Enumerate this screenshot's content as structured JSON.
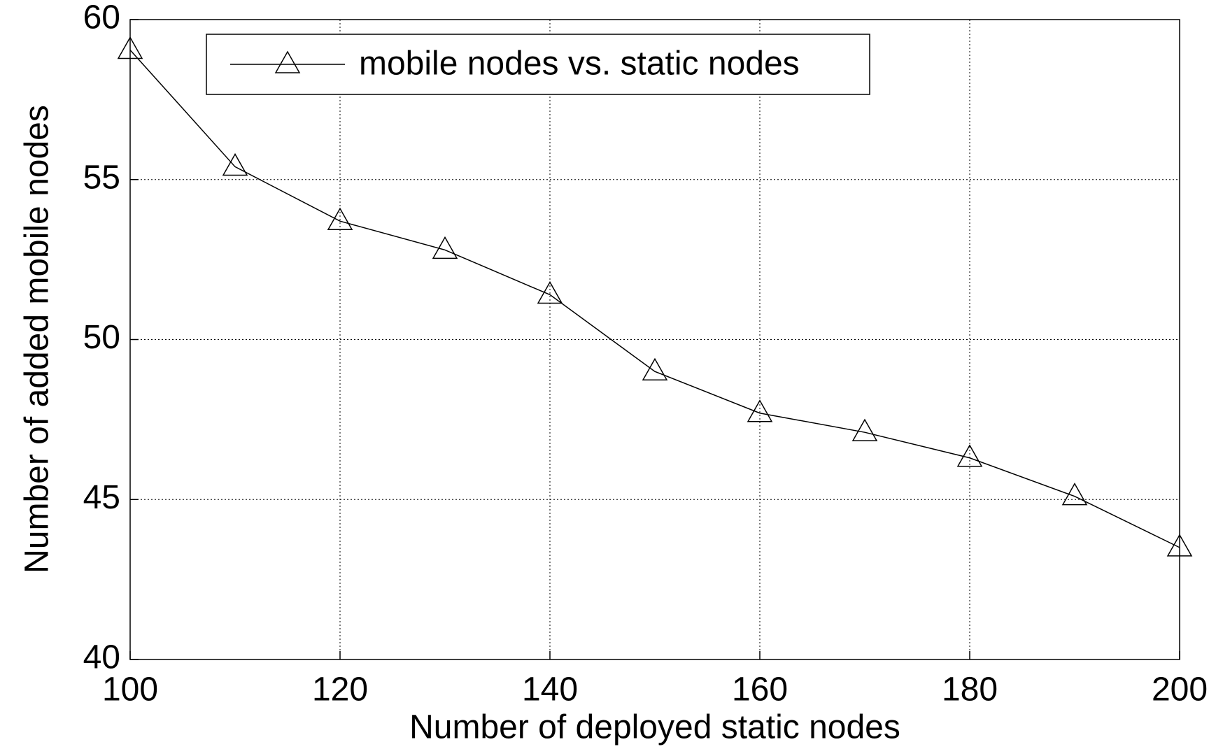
{
  "chart_data": {
    "type": "line",
    "xlabel": "Number of deployed static nodes",
    "ylabel": "Number of added mobile nodes",
    "x": [
      100,
      110,
      120,
      130,
      140,
      150,
      160,
      170,
      180,
      190,
      200
    ],
    "series": [
      {
        "name": "mobile nodes vs. static nodes",
        "color": "#000000",
        "marker": "triangle",
        "values": [
          59.05,
          55.4,
          53.7,
          52.8,
          51.4,
          49.0,
          47.7,
          47.1,
          46.3,
          45.1,
          43.5
        ]
      }
    ],
    "xlim": [
      100,
      200
    ],
    "xticks": [
      100,
      120,
      140,
      160,
      180,
      200
    ],
    "ylim": [
      40,
      60
    ],
    "yticks": [
      40,
      45,
      50,
      55,
      60
    ],
    "grid": true,
    "legend": "upper left"
  }
}
